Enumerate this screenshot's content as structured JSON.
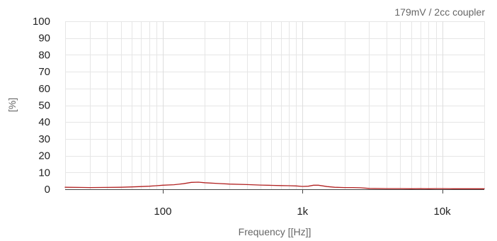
{
  "chart_data": {
    "type": "line",
    "annotation": "179mV / 2cc coupler",
    "xlabel": "Frequency [[Hz]]",
    "ylabel": "[%]",
    "x_scale": "log",
    "xlim": [
      20,
      20000
    ],
    "ylim": [
      0,
      100
    ],
    "grid": true,
    "x_ticks": [
      {
        "value": 100,
        "label": "100"
      },
      {
        "value": 1000,
        "label": "1k"
      },
      {
        "value": 10000,
        "label": "10k"
      }
    ],
    "y_ticks": [
      {
        "value": 0,
        "label": "0"
      },
      {
        "value": 10,
        "label": "10"
      },
      {
        "value": 20,
        "label": "20"
      },
      {
        "value": 30,
        "label": "30"
      },
      {
        "value": 40,
        "label": "40"
      },
      {
        "value": 50,
        "label": "50"
      },
      {
        "value": 60,
        "label": "60"
      },
      {
        "value": 70,
        "label": "70"
      },
      {
        "value": 80,
        "label": "80"
      },
      {
        "value": 90,
        "label": "90"
      },
      {
        "value": 100,
        "label": "100"
      }
    ],
    "series": [
      {
        "color": "#b22222",
        "x": [
          20,
          25,
          30,
          40,
          50,
          60,
          70,
          80,
          90,
          100,
          120,
          140,
          160,
          180,
          200,
          250,
          300,
          400,
          500,
          600,
          700,
          800,
          900,
          1000,
          1100,
          1200,
          1300,
          1500,
          1700,
          2000,
          2300,
          2600,
          3000,
          4000,
          5000,
          6000,
          7000,
          8000,
          9000,
          10000,
          12000,
          15000,
          20000
        ],
        "values": [
          1.2,
          1.1,
          1.0,
          1.1,
          1.2,
          1.4,
          1.6,
          1.8,
          2.1,
          2.4,
          2.7,
          3.3,
          4.1,
          4.2,
          3.9,
          3.4,
          3.1,
          2.8,
          2.5,
          2.3,
          2.2,
          2.1,
          2.0,
          1.7,
          1.8,
          2.4,
          2.4,
          1.6,
          1.2,
          1.0,
          1.0,
          0.9,
          0.5,
          0.4,
          0.4,
          0.3,
          0.4,
          0.3,
          0.4,
          0.4,
          0.3,
          0.3,
          0.3
        ]
      }
    ]
  }
}
